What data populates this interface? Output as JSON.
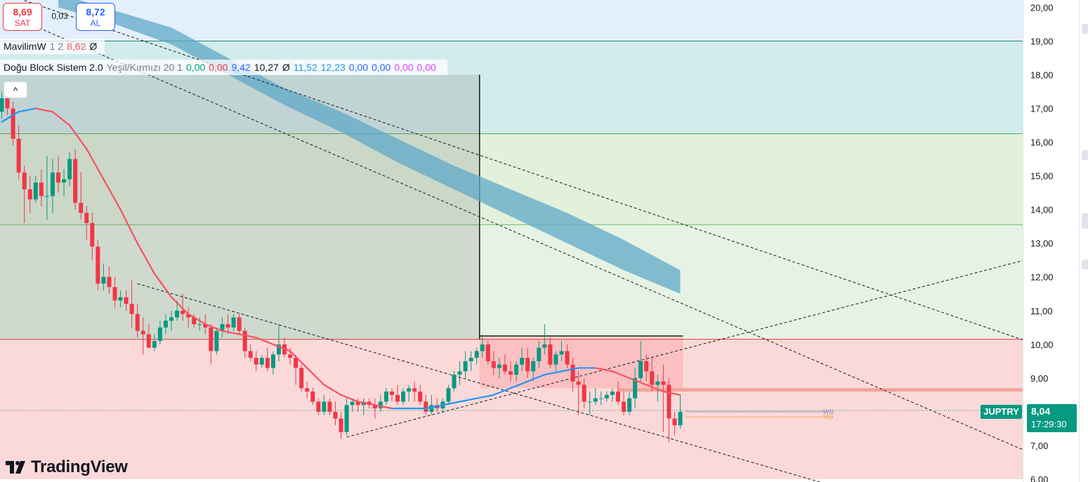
{
  "colors": {
    "up": "#089981",
    "down": "#f23645",
    "ma_red": "#f7525f",
    "ma_blue": "#2196f3",
    "cloud": "#5fa8c8",
    "zone_blue": "#e3f0fb",
    "zone_teal": "#d2ecec",
    "zone_green": "#e1f1dc",
    "zone_lightgreen": "#e6f3e4",
    "zone_red": "#fcd9d9"
  },
  "trade": {
    "sell_price": "8,69",
    "sell_label": "SAT",
    "spread": "0,03",
    "buy_price": "8,72",
    "buy_label": "AL"
  },
  "legend1": {
    "name": "MavilimW",
    "params": "1 2",
    "value": "8,62",
    "extra": "Ø"
  },
  "legend2": {
    "name": "Doğu Block Sistem 2.0",
    "params": "Yeşil/Kırmızı 20 1",
    "values": [
      {
        "text": "0,00",
        "color": "#089981"
      },
      {
        "text": "0,00",
        "color": "#f23645"
      },
      {
        "text": "9,42",
        "color": "#2962ff"
      },
      {
        "text": "10,27",
        "color": "#131722"
      },
      {
        "text": "Ø",
        "color": "#131722"
      },
      {
        "text": "11,52",
        "color": "#2196f3"
      },
      {
        "text": "12,23",
        "color": "#2196f3"
      },
      {
        "text": "0,00",
        "color": "#2962ff"
      },
      {
        "text": "0,00",
        "color": "#2962ff"
      },
      {
        "text": "0,00",
        "color": "#e040fb"
      },
      {
        "text": "0,00",
        "color": "#e040fb"
      }
    ]
  },
  "collapse_symbol": "^",
  "logo": {
    "mark": "17",
    "text": "TradingView"
  },
  "ticker": "JUPTRY",
  "last_price": "8,04",
  "countdown": "17:29:30",
  "right_tags": [
    "WO",
    "MO"
  ],
  "chart_data": {
    "type": "candlestick",
    "y_ticks": [
      "6,00",
      "7,00",
      "8,00",
      "9,00",
      "10,00",
      "11,00",
      "12,00",
      "13,00",
      "14,00",
      "15,00",
      "16,00",
      "17,00",
      "18,00",
      "19,00",
      "20,00"
    ],
    "ylim": [
      6.0,
      20.3
    ],
    "x_range": [
      0,
      190
    ],
    "candles": [
      [
        0,
        16.9,
        17.5,
        16.7,
        17.3
      ],
      [
        1,
        17.3,
        17.5,
        16.8,
        17.0
      ],
      [
        2,
        17.0,
        17.2,
        15.9,
        16.1
      ],
      [
        3,
        16.1,
        16.5,
        14.9,
        15.1
      ],
      [
        4,
        15.1,
        15.3,
        13.6,
        14.6
      ],
      [
        5,
        14.6,
        15.0,
        13.9,
        14.3
      ],
      [
        6,
        14.3,
        15.0,
        14.2,
        14.8
      ],
      [
        7,
        14.8,
        15.2,
        14.1,
        14.4
      ],
      [
        8,
        14.4,
        15.6,
        13.7,
        14.4
      ],
      [
        9,
        14.4,
        15.5,
        13.9,
        15.1
      ],
      [
        10,
        15.1,
        15.6,
        14.5,
        14.8
      ],
      [
        11,
        14.8,
        15.2,
        14.4,
        14.9
      ],
      [
        12,
        14.9,
        15.7,
        14.7,
        15.5
      ],
      [
        13,
        15.5,
        15.8,
        14.0,
        14.2
      ],
      [
        14,
        14.2,
        15.1,
        13.7,
        13.9
      ],
      [
        15,
        13.9,
        14.1,
        13.1,
        13.6
      ],
      [
        16,
        13.6,
        13.9,
        12.5,
        12.9
      ],
      [
        17,
        12.9,
        13.1,
        11.6,
        11.8
      ],
      [
        18,
        11.8,
        12.4,
        11.6,
        12.0
      ],
      [
        19,
        12.0,
        12.3,
        11.5,
        11.7
      ],
      [
        20,
        11.7,
        12.0,
        11.1,
        11.3
      ],
      [
        21,
        11.3,
        11.6,
        11.1,
        11.4
      ],
      [
        22,
        11.4,
        11.6,
        11.0,
        11.2
      ],
      [
        23,
        11.2,
        11.9,
        10.5,
        10.9
      ],
      [
        24,
        10.9,
        11.2,
        10.2,
        10.4
      ],
      [
        25,
        10.4,
        10.8,
        9.7,
        10.3
      ],
      [
        26,
        10.3,
        10.6,
        9.9,
        9.9
      ],
      [
        27,
        9.9,
        10.3,
        9.8,
        10.1
      ],
      [
        28,
        10.1,
        10.7,
        10.0,
        10.5
      ],
      [
        29,
        10.5,
        10.9,
        10.3,
        10.7
      ],
      [
        30,
        10.7,
        11.0,
        10.4,
        10.8
      ],
      [
        31,
        10.8,
        11.3,
        10.7,
        11.0
      ],
      [
        32,
        11.0,
        11.5,
        10.7,
        10.9
      ],
      [
        33,
        10.9,
        11.1,
        10.5,
        10.8
      ],
      [
        34,
        10.8,
        10.9,
        10.5,
        10.6
      ],
      [
        35,
        10.6,
        10.8,
        10.4,
        10.6
      ],
      [
        36,
        10.6,
        10.9,
        10.3,
        10.5
      ],
      [
        37,
        10.5,
        10.6,
        9.4,
        9.8
      ],
      [
        38,
        9.8,
        10.5,
        9.7,
        10.4
      ],
      [
        39,
        10.4,
        10.8,
        10.2,
        10.6
      ],
      [
        40,
        10.6,
        10.9,
        10.3,
        10.5
      ],
      [
        41,
        10.5,
        10.9,
        10.4,
        10.8
      ],
      [
        42,
        10.8,
        10.9,
        10.3,
        10.4
      ],
      [
        43,
        10.4,
        10.5,
        9.6,
        9.8
      ],
      [
        44,
        9.8,
        10.0,
        9.5,
        9.6
      ],
      [
        45,
        9.6,
        9.8,
        9.2,
        9.4
      ],
      [
        46,
        9.4,
        9.7,
        9.3,
        9.6
      ],
      [
        47,
        9.6,
        9.9,
        9.2,
        9.3
      ],
      [
        48,
        9.3,
        9.8,
        9.1,
        9.7
      ],
      [
        49,
        9.7,
        10.6,
        9.5,
        10.0
      ],
      [
        50,
        10.0,
        10.2,
        9.6,
        9.7
      ],
      [
        51,
        9.7,
        9.9,
        9.4,
        9.6
      ],
      [
        52,
        9.6,
        9.7,
        8.8,
        9.3
      ],
      [
        53,
        9.3,
        9.4,
        8.6,
        8.7
      ],
      [
        54,
        8.7,
        8.9,
        8.4,
        8.6
      ],
      [
        55,
        8.6,
        8.7,
        8.2,
        8.3
      ],
      [
        56,
        8.3,
        8.4,
        7.9,
        8.0
      ],
      [
        57,
        8.0,
        8.5,
        7.9,
        8.3
      ],
      [
        58,
        8.3,
        8.4,
        7.9,
        8.0
      ],
      [
        59,
        8.0,
        8.3,
        7.6,
        7.8
      ],
      [
        60,
        7.8,
        8.0,
        7.2,
        7.4
      ],
      [
        61,
        7.4,
        8.4,
        7.3,
        8.2
      ],
      [
        62,
        8.2,
        8.4,
        8.0,
        8.3
      ],
      [
        63,
        8.3,
        8.4,
        8.0,
        8.2
      ],
      [
        64,
        8.2,
        8.4,
        7.9,
        8.3
      ],
      [
        65,
        8.3,
        8.4,
        8.1,
        8.2
      ],
      [
        66,
        8.2,
        8.4,
        7.8,
        8.1
      ],
      [
        67,
        8.1,
        8.5,
        8.0,
        8.3
      ],
      [
        68,
        8.3,
        8.7,
        8.2,
        8.6
      ],
      [
        69,
        8.6,
        8.7,
        8.3,
        8.5
      ],
      [
        70,
        8.5,
        8.8,
        8.2,
        8.3
      ],
      [
        71,
        8.3,
        8.7,
        8.2,
        8.6
      ],
      [
        72,
        8.6,
        8.8,
        8.3,
        8.7
      ],
      [
        73,
        8.7,
        8.9,
        8.3,
        8.6
      ],
      [
        74,
        8.6,
        8.8,
        8.2,
        8.3
      ],
      [
        75,
        8.3,
        8.5,
        7.9,
        8.0
      ],
      [
        76,
        8.0,
        8.5,
        7.9,
        8.2
      ],
      [
        77,
        8.2,
        8.4,
        8.0,
        8.1
      ],
      [
        78,
        8.1,
        8.4,
        8.0,
        8.3
      ],
      [
        79,
        8.3,
        8.8,
        8.2,
        8.7
      ],
      [
        80,
        8.7,
        9.2,
        8.6,
        9.1
      ],
      [
        81,
        9.1,
        9.5,
        8.8,
        9.2
      ],
      [
        82,
        9.2,
        9.8,
        9.0,
        9.5
      ],
      [
        83,
        9.5,
        9.8,
        9.2,
        9.6
      ],
      [
        84,
        9.6,
        9.9,
        9.4,
        9.8
      ],
      [
        85,
        9.8,
        10.3,
        9.6,
        10.0
      ],
      [
        86,
        10.0,
        10.1,
        9.4,
        9.5
      ],
      [
        87,
        9.5,
        9.8,
        9.1,
        9.3
      ],
      [
        88,
        9.3,
        9.6,
        9.0,
        9.4
      ],
      [
        89,
        9.4,
        9.7,
        9.1,
        9.2
      ],
      [
        90,
        9.2,
        9.5,
        8.9,
        9.1
      ],
      [
        91,
        9.1,
        9.5,
        8.9,
        9.4
      ],
      [
        92,
        9.4,
        9.9,
        9.2,
        9.6
      ],
      [
        93,
        9.6,
        9.9,
        9.0,
        9.2
      ],
      [
        94,
        9.2,
        9.6,
        8.9,
        9.5
      ],
      [
        95,
        9.5,
        10.1,
        9.3,
        9.9
      ],
      [
        96,
        9.9,
        10.6,
        9.7,
        10.0
      ],
      [
        97,
        10.0,
        10.2,
        9.3,
        9.4
      ],
      [
        98,
        9.4,
        9.8,
        9.2,
        9.7
      ],
      [
        99,
        9.7,
        10.1,
        9.5,
        9.8
      ],
      [
        100,
        9.8,
        10.0,
        9.3,
        9.4
      ],
      [
        101,
        9.4,
        9.6,
        8.6,
        8.9
      ],
      [
        102,
        8.9,
        9.2,
        7.9,
        8.8
      ],
      [
        103,
        8.8,
        9.0,
        8.1,
        8.3
      ],
      [
        104,
        8.3,
        8.6,
        7.9,
        8.3
      ],
      [
        105,
        8.3,
        8.7,
        8.2,
        8.4
      ],
      [
        106,
        8.4,
        8.6,
        8.2,
        8.4
      ],
      [
        107,
        8.4,
        8.6,
        8.3,
        8.5
      ],
      [
        108,
        8.5,
        8.7,
        8.3,
        8.6
      ],
      [
        109,
        8.6,
        8.9,
        8.2,
        8.3
      ],
      [
        110,
        8.3,
        8.6,
        7.9,
        8.0
      ],
      [
        111,
        8.0,
        8.6,
        7.9,
        8.4
      ],
      [
        112,
        8.4,
        9.3,
        8.1,
        9.0
      ],
      [
        113,
        9.0,
        10.1,
        8.9,
        9.5
      ],
      [
        114,
        9.5,
        9.7,
        8.9,
        9.2
      ],
      [
        115,
        9.2,
        9.6,
        8.6,
        8.8
      ],
      [
        116,
        8.8,
        9.1,
        8.3,
        8.9
      ],
      [
        117,
        8.9,
        9.4,
        7.4,
        8.8
      ],
      [
        118,
        8.8,
        9.0,
        7.1,
        7.8
      ],
      [
        119,
        7.8,
        8.0,
        7.3,
        7.6
      ],
      [
        120,
        7.6,
        8.5,
        7.5,
        8.0
      ]
    ],
    "ma_line": [
      [
        0,
        16.6
      ],
      [
        3,
        16.9
      ],
      [
        6,
        17.0
      ],
      [
        9,
        16.9
      ],
      [
        12,
        16.5
      ],
      [
        15,
        15.8
      ],
      [
        18,
        14.9
      ],
      [
        21,
        14.0
      ],
      [
        24,
        13.0
      ],
      [
        27,
        12.1
      ],
      [
        30,
        11.4
      ],
      [
        33,
        10.9
      ],
      [
        36,
        10.6
      ],
      [
        39,
        10.4
      ],
      [
        42,
        10.3
      ],
      [
        45,
        10.2
      ],
      [
        48,
        10.0
      ],
      [
        51,
        9.8
      ],
      [
        54,
        9.3
      ],
      [
        57,
        8.8
      ],
      [
        60,
        8.5
      ],
      [
        63,
        8.3
      ],
      [
        66,
        8.2
      ],
      [
        69,
        8.1
      ],
      [
        72,
        8.1
      ],
      [
        75,
        8.1
      ],
      [
        78,
        8.2
      ],
      [
        81,
        8.3
      ],
      [
        84,
        8.4
      ],
      [
        87,
        8.5
      ],
      [
        90,
        8.7
      ],
      [
        93,
        8.9
      ],
      [
        96,
        9.1
      ],
      [
        99,
        9.2
      ],
      [
        102,
        9.3
      ],
      [
        105,
        9.3
      ],
      [
        108,
        9.2
      ],
      [
        111,
        9.0
      ],
      [
        114,
        8.8
      ],
      [
        117,
        8.6
      ],
      [
        120,
        8.5
      ]
    ],
    "cloud": {
      "upper": [
        [
          10,
          20.4
        ],
        [
          20,
          19.9
        ],
        [
          30,
          19.4
        ],
        [
          40,
          18.5
        ],
        [
          50,
          17.6
        ],
        [
          60,
          16.9
        ],
        [
          70,
          16.1
        ],
        [
          80,
          15.3
        ],
        [
          90,
          14.6
        ],
        [
          100,
          13.9
        ],
        [
          110,
          13.1
        ],
        [
          120,
          12.2
        ]
      ],
      "lower": [
        [
          10,
          20.0
        ],
        [
          20,
          19.5
        ],
        [
          30,
          18.9
        ],
        [
          40,
          18.0
        ],
        [
          50,
          17.1
        ],
        [
          60,
          16.3
        ],
        [
          70,
          15.4
        ],
        [
          80,
          14.6
        ],
        [
          90,
          13.8
        ],
        [
          100,
          13.0
        ],
        [
          110,
          12.2
        ],
        [
          120,
          11.5
        ]
      ]
    },
    "zones": [
      {
        "from": 19.0,
        "to": 20.3,
        "color_key": "zone_blue"
      },
      {
        "from": 16.25,
        "to": 19.0,
        "color_key": "zone_teal"
      },
      {
        "from": 13.55,
        "to": 16.25,
        "color_key": "zone_green"
      },
      {
        "from": 10.15,
        "to": 13.55,
        "color_key": "zone_lightgreen"
      },
      {
        "from": 6.0,
        "to": 10.15,
        "color_key": "zone_red"
      }
    ],
    "hlines": [
      19.0,
      16.25,
      13.55,
      10.15
    ],
    "range_box": {
      "x1": 0,
      "x2": 85,
      "y_top": 18.0,
      "y_bottom": 10.15
    },
    "range_box2": {
      "x1": 85,
      "x2": 120,
      "y_top": 10.25,
      "y_bottom": 8.7
    },
    "resistance_band": {
      "x1": 109,
      "x2": 190,
      "y_low": 8.6,
      "y_high": 8.7
    },
    "last_price_value": 8.04,
    "trendlines": [
      [
        [
          -10,
          21.0
        ],
        [
          190,
          9.6
        ]
      ],
      [
        [
          5,
          19.5
        ],
        [
          190,
          6.2
        ]
      ],
      [
        [
          24,
          11.8
        ],
        [
          145,
          5.9
        ]
      ],
      [
        [
          61,
          7.25
        ],
        [
          190,
          12.9
        ]
      ]
    ],
    "short_lines": [
      {
        "from": [
          121,
          8.0
        ],
        "to": [
          147,
          8.0
        ],
        "color": "#9c8ec8"
      },
      {
        "from": [
          121,
          7.85
        ],
        "to": [
          147,
          7.85
        ],
        "color": "#f4a460"
      }
    ]
  }
}
